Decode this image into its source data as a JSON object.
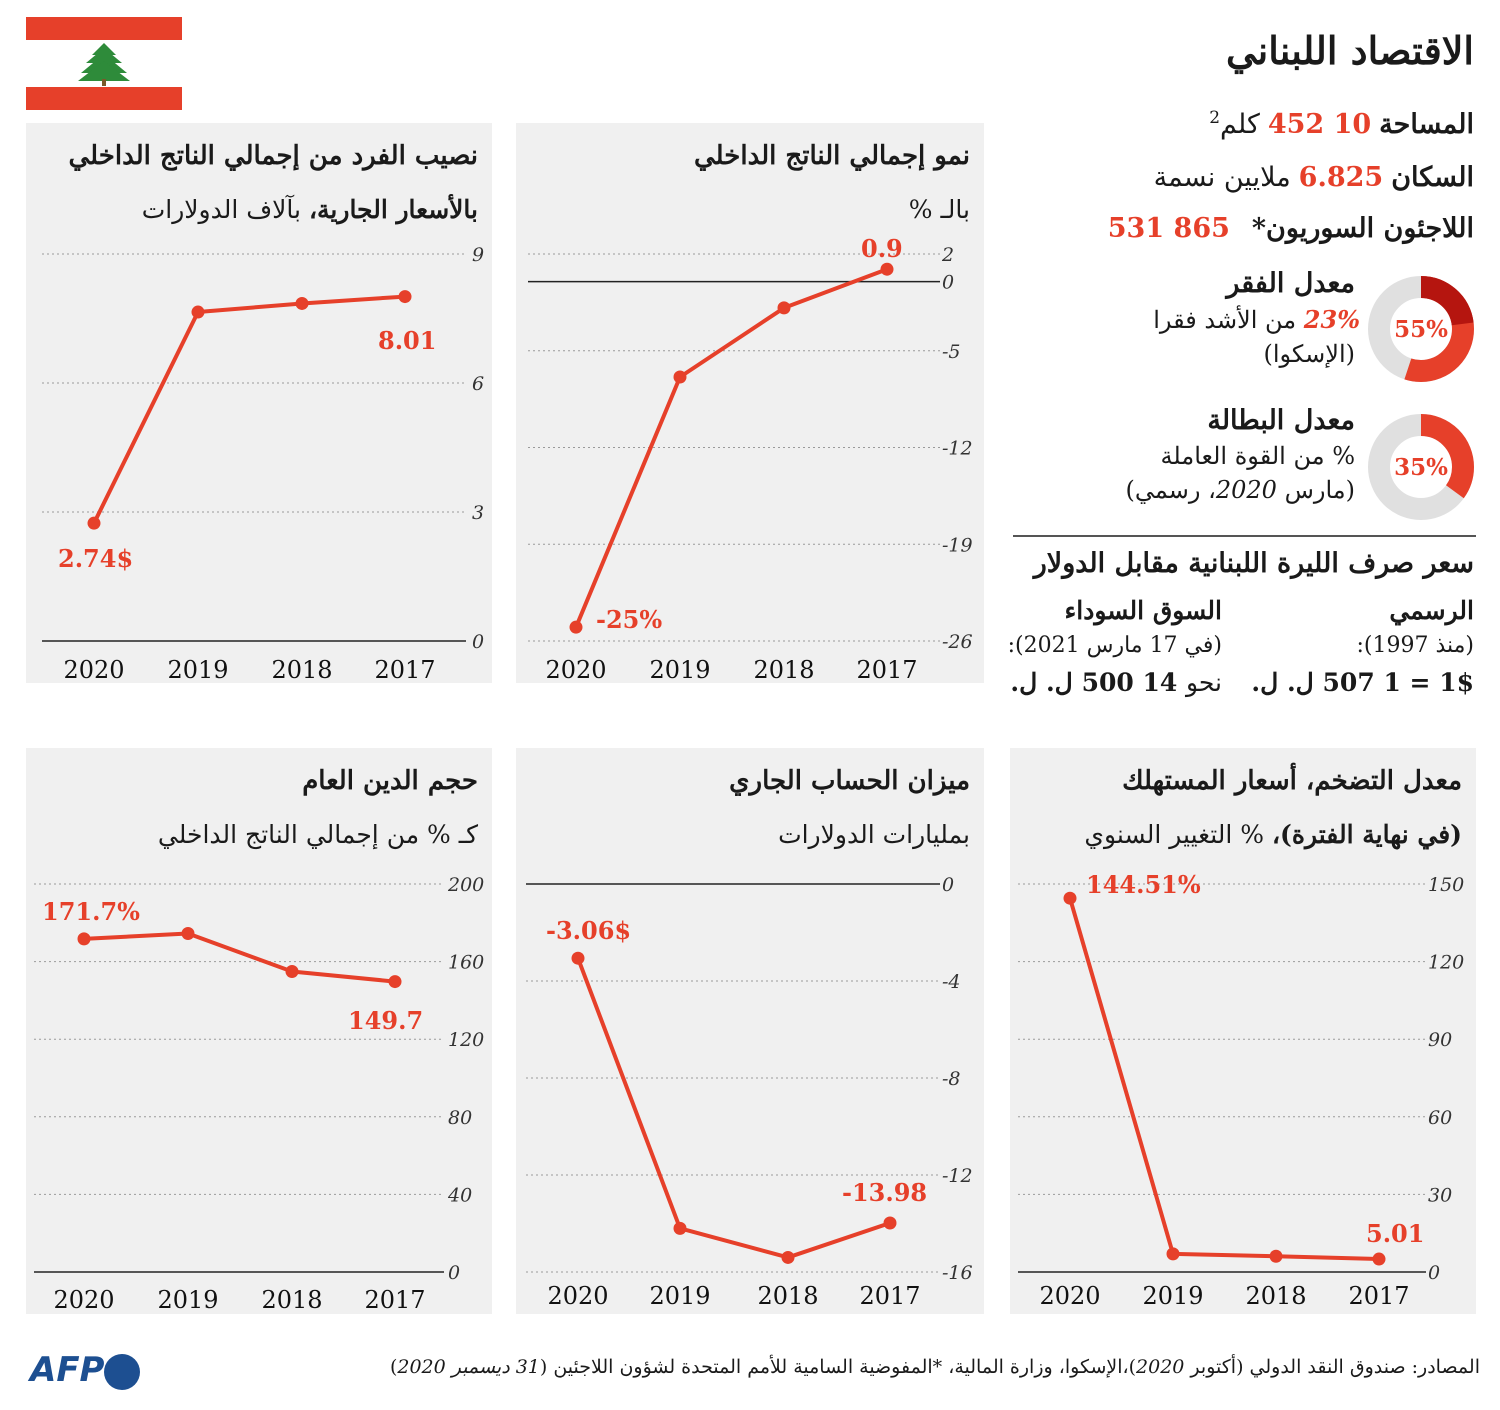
{
  "title": "الاقتصاد اللبناني",
  "facts": {
    "area_label": "المساحة",
    "area_value": "10 452",
    "area_unit": "كلم",
    "area_unit_sup": "2",
    "population_label": "السكان",
    "population_value": "6.825",
    "population_unit": "ملايين نسمة",
    "refugees_label": "اللاجئون السوريون*",
    "refugees_value": "865 531"
  },
  "poverty": {
    "title": "معدل الفقر",
    "extreme_pct": "23%",
    "extreme_text": "من الأشد فقرا",
    "source": "(الإسكوا)",
    "total_value": 55,
    "extreme_value": 23,
    "total_label": "55%"
  },
  "unemployment": {
    "title": "معدل البطالة",
    "line1": "% من القوة العاملة",
    "line2_a": "(مارس ",
    "line2_year": "2020",
    "line2_b": "، رسمي)",
    "value": 35,
    "label": "35%"
  },
  "exchange": {
    "title": "سعر صرف الليرة اللبنانية مقابل الدولار",
    "official_title": "الرسمي",
    "official_since": "(منذ 1997):",
    "official_value": "1$ = 1 507 ل. ل.",
    "black_title": "السوق السوداء",
    "black_since": "(في 17 مارس 2021):",
    "black_prefix": "نحو",
    "black_value": "14 500 ل. ل."
  },
  "colors": {
    "accent": "#e6402a",
    "dark_accent": "#b5150f",
    "panel_bg": "#f0f0f0",
    "donut_bg": "#e0e0e0",
    "afp_blue": "#1d4f91"
  },
  "source": {
    "prefix": "المصادر: صندوق النقد الدولي (أكتوبر ",
    "year1": "2020",
    "middle": ")،الإسكوا، وزارة المالية، *المفوضية السامية للأمم المتحدة لشؤون اللاجئين (",
    "date2": "31 ديسمبر 2020",
    "suffix": ")"
  },
  "logo": "AFP",
  "chart_data": [
    {
      "id": "gdp-per-capita",
      "type": "line",
      "title": "نصيب الفرد من إجمالي الناتج الداخلي",
      "subtitle_bold": "بالأسعار الجارية،",
      "subtitle_rest": " بآلاف الدولارات",
      "categories": [
        "2020",
        "2019",
        "2018",
        "2017"
      ],
      "values": [
        2.74,
        7.65,
        7.85,
        8.01
      ],
      "ylim": [
        0,
        9
      ],
      "yticks": [
        "0",
        "3",
        "6",
        "9"
      ],
      "labels": {
        "2020": "2.74$",
        "2017": "8.01"
      }
    },
    {
      "id": "gdp-growth",
      "type": "line",
      "title": "نمو إجمالي الناتج الداخلي",
      "subtitle_bold": "",
      "subtitle_rest": "بالـ %",
      "categories": [
        "2020",
        "2019",
        "2018",
        "2017"
      ],
      "values": [
        -25,
        -6.9,
        -1.9,
        0.9
      ],
      "ylim": [
        -26,
        2
      ],
      "yticks": [
        "-26",
        "-19",
        "-12",
        "-5",
        "0",
        "2"
      ],
      "labels": {
        "2020": "-25%",
        "2017": "0.9"
      }
    },
    {
      "id": "public-debt",
      "type": "line",
      "title": "حجم الدين العام",
      "subtitle_bold": "",
      "subtitle_rest": "كـ % من إجمالي الناتج الداخلي",
      "categories": [
        "2020",
        "2019",
        "2018",
        "2017"
      ],
      "values": [
        171.7,
        174.5,
        154.9,
        149.7
      ],
      "ylim": [
        0,
        200
      ],
      "yticks": [
        "0",
        "40",
        "80",
        "120",
        "160",
        "200"
      ],
      "labels": {
        "2020": "171.7%",
        "2017": "149.7"
      }
    },
    {
      "id": "current-account",
      "type": "line",
      "title": "ميزان الحساب الجاري",
      "subtitle_bold": "",
      "subtitle_rest": "بمليارات الدولارات",
      "categories": [
        "2020",
        "2019",
        "2018",
        "2017"
      ],
      "values": [
        -3.06,
        -14.2,
        -15.4,
        -13.98
      ],
      "ylim": [
        -16,
        0
      ],
      "yticks": [
        "-16",
        "-12",
        "-8",
        "-4",
        "0"
      ],
      "labels": {
        "2020": "-3.06$",
        "2017": "-13.98"
      }
    },
    {
      "id": "inflation",
      "type": "line",
      "title": "معدل التضخم، أسعار المستهلك",
      "subtitle_bold": "(في نهاية الفترة)،",
      "subtitle_rest": " % التغيير السنوي",
      "categories": [
        "2020",
        "2019",
        "2018",
        "2017"
      ],
      "values": [
        144.51,
        7.0,
        6.1,
        5.01
      ],
      "ylim": [
        0,
        150
      ],
      "yticks": [
        "0",
        "30",
        "60",
        "90",
        "120",
        "150"
      ],
      "labels": {
        "2020": "144.51%",
        "2017": "5.01"
      }
    }
  ]
}
